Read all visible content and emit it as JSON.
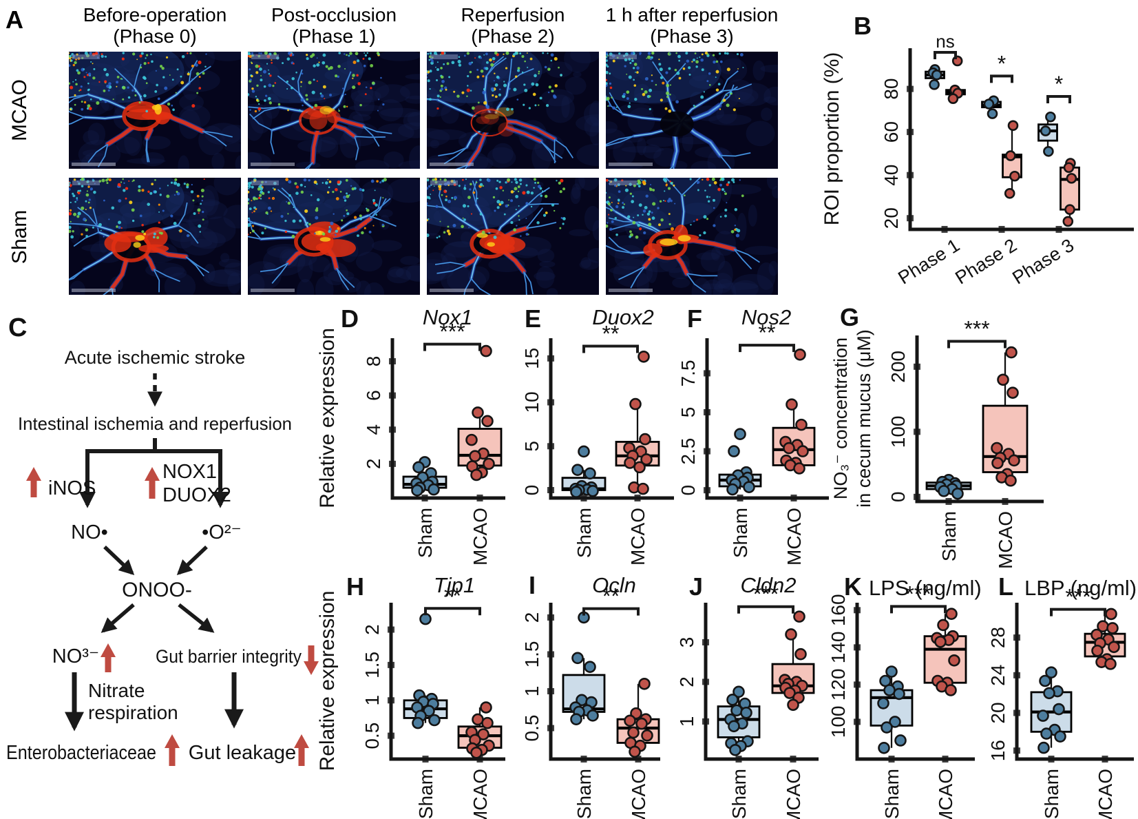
{
  "colors": {
    "sham_box": "#ccdce9",
    "mcao_box": "#f5c4bb",
    "sham_point": "#4d7d9e",
    "mcao_point": "#c0544b",
    "accent_red": "#bf4b41",
    "axis": "#151515"
  },
  "panel_a": {
    "letter": "A",
    "columns": [
      {
        "line1": "Before-operation",
        "line2": "(Phase 0)"
      },
      {
        "line1": "Post-occlusion",
        "line2": "(Phase 1)"
      },
      {
        "line1": "Reperfusion",
        "line2": "(Phase 2)"
      },
      {
        "line1": "1 h after reperfusion",
        "line2": "(Phase 3)"
      }
    ],
    "rows": [
      "MCAO",
      "Sham"
    ],
    "tiles": [
      {
        "row": "MCAO",
        "phase": "Phase 0",
        "flow": "high"
      },
      {
        "row": "MCAO",
        "phase": "Phase 1",
        "flow": "medium"
      },
      {
        "row": "MCAO",
        "phase": "Phase 2",
        "flow": "low"
      },
      {
        "row": "MCAO",
        "phase": "Phase 3",
        "flow": "minimal"
      },
      {
        "row": "Sham",
        "phase": "Phase 0",
        "flow": "high"
      },
      {
        "row": "Sham",
        "phase": "Phase 1",
        "flow": "high"
      },
      {
        "row": "Sham",
        "phase": "Phase 2",
        "flow": "high"
      },
      {
        "row": "Sham",
        "phase": "Phase 3",
        "flow": "high"
      }
    ]
  },
  "diagram": {
    "letter": "C",
    "nodes": {
      "stroke": "Acute ischemic stroke",
      "iir": "Intestinal ischemia and reperfusion",
      "inos": "iNOS",
      "nox1": "NOX1",
      "duox2": "DUOX2",
      "no": "NO•",
      "o2": "•O²⁻",
      "onoo": "ONOO-",
      "no3": "NO³⁻",
      "gut_barrier": "Gut barrier integrity",
      "nitrate1": "Nitrate",
      "nitrate2": "respiration",
      "entero": "Enterobacteriaceae",
      "leakage": "Gut leakage"
    }
  },
  "chart_data": [
    {
      "panel": "B",
      "letter": "B",
      "type": "box",
      "title": null,
      "title_italic": false,
      "ylabel_lines": [
        "ROI proportion (%)"
      ],
      "ylim": [
        14.8,
        98.9
      ],
      "yticks": [
        20,
        40,
        60,
        80
      ],
      "groups": [
        "Sham",
        "MCAO"
      ],
      "categories": [
        "Phase 1",
        "Phase 2",
        "Phase 3"
      ],
      "boxes": [
        {
          "category": "Phase 1",
          "group": "Sham",
          "whisker_low": 82,
          "q1": 85,
          "median": 86.5,
          "q3": 88,
          "whisker_high": 89,
          "points": [
            89,
            87.5,
            86.5,
            82
          ]
        },
        {
          "category": "Phase 1",
          "group": "MCAO",
          "whisker_low": 75.5,
          "q1": 77.5,
          "median": 78.5,
          "q3": 79.5,
          "whisker_high": 80.5,
          "points": [
            93,
            79.5,
            78,
            75.5
          ]
        },
        {
          "category": "Phase 2",
          "group": "Sham",
          "whisker_low": 68.5,
          "q1": 71.5,
          "median": 72.5,
          "q3": 74,
          "whisker_high": 74.5,
          "points": [
            74.5,
            73,
            68.5
          ]
        },
        {
          "category": "Phase 2",
          "group": "MCAO",
          "whisker_low": 31.5,
          "q1": 39,
          "median": 48.5,
          "q3": 49.5,
          "whisker_high": 63,
          "points": [
            63,
            49,
            39.5,
            31.5
          ]
        },
        {
          "category": "Phase 3",
          "group": "Sham",
          "whisker_low": 51,
          "q1": 56,
          "median": 60.5,
          "q3": 63.5,
          "whisker_high": 67,
          "points": [
            67,
            60.5,
            51
          ]
        },
        {
          "category": "Phase 3",
          "group": "MCAO",
          "whisker_low": 18.5,
          "q1": 24,
          "median": 38,
          "q3": 43.5,
          "whisker_high": 45.5,
          "points": [
            45.5,
            43.5,
            38.5,
            24,
            18.5
          ]
        }
      ],
      "significance": [
        {
          "category": "Phase 1",
          "label": "ns",
          "y": 97
        },
        {
          "category": "Phase 2",
          "label": "*",
          "y": 86
        },
        {
          "category": "Phase 3",
          "label": "*",
          "y": 76.5
        }
      ]
    },
    {
      "panel": "D",
      "letter": "D",
      "type": "box",
      "title": "Nox1",
      "title_italic": true,
      "ylabel_lines": [
        "Relative expression"
      ],
      "ylim": [
        0,
        9.35
      ],
      "yticks": [
        2,
        4,
        6,
        8
      ],
      "categories": [
        "Sham",
        "MCAO"
      ],
      "boxes": [
        {
          "category": "Sham",
          "group": "Sham",
          "whisker_low": 0.45,
          "q1": 0.6,
          "median": 0.8,
          "q3": 1.25,
          "whisker_high": 1.45,
          "points": [
            2.1,
            1.8,
            1.45,
            1.2,
            0.95,
            0.85,
            0.75,
            0.6,
            0.5,
            0.45
          ]
        },
        {
          "category": "MCAO",
          "group": "MCAO",
          "whisker_low": 1.35,
          "q1": 1.9,
          "median": 2.5,
          "q3": 4.05,
          "whisker_high": 5.0,
          "points": [
            8.6,
            5.0,
            4.5,
            3.4,
            2.6,
            2.45,
            2.0,
            1.85,
            1.5,
            1.35
          ]
        }
      ],
      "significance": [
        {
          "label": "***",
          "y": 9.0
        }
      ]
    },
    {
      "panel": "E",
      "letter": "E",
      "type": "box",
      "title": "Duox2",
      "title_italic": true,
      "ylabel_lines": [],
      "ylim": [
        -0.9,
        17.3
      ],
      "yticks": [
        0,
        5,
        10,
        15
      ],
      "categories": [
        "Sham",
        "MCAO"
      ],
      "boxes": [
        {
          "category": "Sham",
          "group": "Sham",
          "whisker_low": -0.2,
          "q1": 0.0,
          "median": 0.15,
          "q3": 1.4,
          "whisker_high": 2.3,
          "points": [
            4.4,
            2.3,
            1.9,
            0.45,
            0.3,
            0.15,
            0.05,
            0,
            -0.1,
            -0.2
          ]
        },
        {
          "category": "MCAO",
          "group": "MCAO",
          "whisker_low": 0.15,
          "q1": 2.8,
          "median": 3.9,
          "q3": 5.5,
          "whisker_high": 9.8,
          "points": [
            15.2,
            9.8,
            5.8,
            4.8,
            4.4,
            3.9,
            3.5,
            3.1,
            2.6,
            0.3,
            0.15
          ]
        }
      ],
      "significance": [
        {
          "label": "**",
          "y": 16.4
        }
      ]
    },
    {
      "panel": "F",
      "letter": "F",
      "type": "box",
      "title": "Nos2",
      "title_italic": true,
      "ylabel_lines": [],
      "ylim": [
        -0.5,
        9.75
      ],
      "yticks": [
        0,
        2.5,
        5,
        7.5
      ],
      "categories": [
        "Sham",
        "MCAO"
      ],
      "boxes": [
        {
          "category": "Sham",
          "group": "Sham",
          "whisker_low": 0.05,
          "q1": 0.25,
          "median": 0.65,
          "q3": 1.0,
          "whisker_high": 1.15,
          "points": [
            3.6,
            2.5,
            1.15,
            0.95,
            0.8,
            0.65,
            0.55,
            0.4,
            0.2,
            0.05
          ]
        },
        {
          "category": "MCAO",
          "group": "MCAO",
          "whisker_low": 1.35,
          "q1": 1.6,
          "median": 2.6,
          "q3": 4.0,
          "whisker_high": 5.5,
          "points": [
            8.7,
            5.5,
            4.2,
            3.1,
            2.9,
            2.7,
            2.5,
            1.9,
            1.75,
            1.6,
            1.4
          ]
        }
      ],
      "significance": [
        {
          "label": "**",
          "y": 9.3
        }
      ]
    },
    {
      "panel": "G",
      "letter": "G",
      "type": "box",
      "title": null,
      "title_italic": false,
      "ylabel_lines": [
        "NO₃⁻ concentration",
        "in cecum mucus (μM)"
      ],
      "ylim": [
        -7,
        248
      ],
      "yticks": [
        0,
        100,
        200
      ],
      "categories": [
        "Sham",
        "MCAO"
      ],
      "boxes": [
        {
          "category": "Sham",
          "group": "Sham",
          "whisker_low": 4,
          "q1": 12,
          "median": 17,
          "q3": 22,
          "whisker_high": 26,
          "points": [
            26,
            23,
            21,
            19,
            17,
            15,
            12,
            9,
            5
          ]
        },
        {
          "category": "MCAO",
          "group": "MCAO",
          "whisker_low": 24,
          "q1": 38,
          "median": 62,
          "q3": 140,
          "whisker_high": 222,
          "points": [
            222,
            180,
            160,
            75,
            66,
            60,
            56,
            52,
            35,
            30,
            25
          ]
        }
      ],
      "significance": [
        {
          "label": "***",
          "y": 239
        }
      ]
    },
    {
      "panel": "H",
      "letter": "H",
      "type": "box",
      "title": "Tjp1",
      "title_italic": true,
      "ylabel_lines": [
        "Relative expression"
      ],
      "ylim": [
        0.17,
        2.38
      ],
      "yticks": [
        0.5,
        1,
        1.5,
        2
      ],
      "categories": [
        "Sham",
        "MCAO"
      ],
      "boxes": [
        {
          "category": "Sham",
          "group": "Sham",
          "whisker_low": 0.68,
          "q1": 0.75,
          "median": 0.88,
          "q3": 1.0,
          "whisker_high": 1.07,
          "points": [
            2.15,
            1.07,
            1.02,
            0.98,
            0.95,
            0.9,
            0.85,
            0.78,
            0.72,
            0.68
          ]
        },
        {
          "category": "MCAO",
          "group": "MCAO",
          "whisker_low": 0.26,
          "q1": 0.33,
          "median": 0.5,
          "q3": 0.63,
          "whisker_high": 0.9,
          "points": [
            0.9,
            0.73,
            0.68,
            0.55,
            0.52,
            0.44,
            0.36,
            0.32,
            0.3,
            0.26
          ]
        }
      ],
      "significance": [
        {
          "label": "**",
          "y": 2.3
        }
      ]
    },
    {
      "panel": "I",
      "letter": "I",
      "type": "box",
      "title": "Ocln",
      "title_italic": true,
      "ylabel_lines": [],
      "ylim": [
        0.08,
        2.2
      ],
      "yticks": [
        0.5,
        1,
        1.5,
        2
      ],
      "categories": [
        "Sham",
        "MCAO"
      ],
      "boxes": [
        {
          "category": "Sham",
          "group": "Sham",
          "whisker_low": 0.62,
          "q1": 0.72,
          "median": 0.76,
          "q3": 1.22,
          "whisker_high": 1.45,
          "points": [
            2.0,
            1.45,
            1.33,
            0.88,
            0.85,
            0.78,
            0.74,
            0.72,
            0.67,
            0.62
          ]
        },
        {
          "category": "MCAO",
          "group": "MCAO",
          "whisker_low": 0.18,
          "q1": 0.3,
          "median": 0.5,
          "q3": 0.62,
          "whisker_high": 1.1,
          "points": [
            1.1,
            0.7,
            0.62,
            0.6,
            0.56,
            0.44,
            0.4,
            0.3,
            0.26,
            0.18
          ]
        }
      ],
      "significance": [
        {
          "label": "**",
          "y": 2.12
        }
      ]
    },
    {
      "panel": "J",
      "letter": "J",
      "type": "box",
      "title": "Cldn2",
      "title_italic": true,
      "ylabel_lines": [],
      "ylim": [
        0.05,
        4.0
      ],
      "yticks": [
        1,
        2,
        3
      ],
      "categories": [
        "Sham",
        "MCAO"
      ],
      "boxes": [
        {
          "category": "Sham",
          "group": "Sham",
          "whisker_low": 0.28,
          "q1": 0.6,
          "median": 1.05,
          "q3": 1.38,
          "whisker_high": 1.75,
          "points": [
            1.75,
            1.55,
            1.45,
            1.28,
            1.22,
            1.05,
            0.95,
            0.88,
            0.5,
            0.45,
            0.38,
            0.28
          ]
        },
        {
          "category": "MCAO",
          "group": "MCAO",
          "whisker_low": 1.42,
          "q1": 1.72,
          "median": 1.9,
          "q3": 2.45,
          "whisker_high": 3.2,
          "points": [
            3.65,
            3.2,
            2.7,
            2.05,
            2.0,
            1.95,
            1.9,
            1.85,
            1.78,
            1.72,
            1.6,
            1.42
          ]
        }
      ],
      "significance": [
        {
          "label": "***",
          "y": 3.9
        }
      ]
    },
    {
      "panel": "K",
      "letter": "K",
      "type": "box",
      "title": "LPS (ng/ml)",
      "title_italic": false,
      "ylabel_lines": [],
      "ylim": [
        80,
        164
      ],
      "yticks": [
        100,
        120,
        140,
        160
      ],
      "categories": [
        "Sham",
        "MCAO"
      ],
      "boxes": [
        {
          "category": "Sham",
          "group": "Sham",
          "whisker_low": 86,
          "q1": 98,
          "median": 113,
          "q3": 117,
          "whisker_high": 127,
          "points": [
            127,
            122,
            119,
            117,
            115,
            110,
            100,
            97,
            90,
            86
          ]
        },
        {
          "category": "MCAO",
          "group": "MCAO",
          "whisker_low": 117,
          "q1": 121,
          "median": 139,
          "q3": 146,
          "whisker_high": 158,
          "points": [
            158,
            152,
            146,
            145,
            144,
            143,
            133,
            122,
            121,
            119,
            117
          ]
        }
      ],
      "significance": [
        {
          "label": "***",
          "y": 162
        }
      ]
    },
    {
      "panel": "L",
      "letter": "L",
      "type": "box",
      "title": "LBP (ng/ml)",
      "title_italic": false,
      "ylabel_lines": [],
      "ylim": [
        15.1,
        31.7
      ],
      "yticks": [
        16,
        20,
        24,
        28
      ],
      "categories": [
        "Sham",
        "MCAO"
      ],
      "boxes": [
        {
          "category": "Sham",
          "group": "Sham",
          "whisker_low": 16.3,
          "q1": 18,
          "median": 20.1,
          "q3": 22.2,
          "whisker_high": 24.3,
          "points": [
            24.3,
            23.4,
            22.3,
            22.1,
            20.4,
            19.7,
            18.2,
            17.8,
            17.5,
            16.3
          ]
        },
        {
          "category": "MCAO",
          "group": "MCAO",
          "whisker_low": 25.2,
          "q1": 26,
          "median": 27.5,
          "q3": 28.4,
          "whisker_high": 30.5,
          "points": [
            30.5,
            29.2,
            29.0,
            28.3,
            27.8,
            27.4,
            27.0,
            26.6,
            25.7,
            25.4,
            25.2
          ]
        }
      ],
      "significance": [
        {
          "label": "***",
          "y": 31
        }
      ]
    }
  ]
}
